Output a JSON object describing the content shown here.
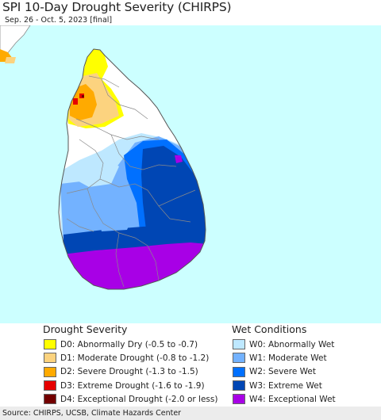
{
  "header": {
    "title": "SPI 10-Day Drought Severity (CHIRPS)",
    "subtitle": "Sep. 26 - Oct. 5, 2023 [final]"
  },
  "map": {
    "sea_color": "#ccffff",
    "land_color": "#ffffff",
    "boundary_color": "#8a8a8a"
  },
  "legend_drought": {
    "title": "Drought Severity",
    "items": [
      {
        "label": "D0: Abnormally Dry (-0.5 to -0.7)",
        "color": "#ffff00"
      },
      {
        "label": "D1: Moderate Drought (-0.8 to -1.2)",
        "color": "#fcd37f"
      },
      {
        "label": "D2: Severe Drought (-1.3 to -1.5)",
        "color": "#ffaa00"
      },
      {
        "label": "D3: Extreme Drought (-1.6 to -1.9)",
        "color": "#e60000"
      },
      {
        "label": "D4: Exceptional Drought (-2.0 or less)",
        "color": "#730000"
      }
    ]
  },
  "legend_wet": {
    "title": "Wet Conditions",
    "items": [
      {
        "label": "W0: Abnormally Wet",
        "color": "#bee8ff"
      },
      {
        "label": "W1: Moderate Wet",
        "color": "#73b2ff"
      },
      {
        "label": "W2: Severe Wet",
        "color": "#0070ff"
      },
      {
        "label": "W3: Extreme Wet",
        "color": "#0046b4"
      },
      {
        "label": "W4: Exceptional Wet",
        "color": "#a800e6"
      }
    ]
  },
  "footer": {
    "source": "Source: CHIRPS, UCSB, Climate Hazards Center"
  }
}
